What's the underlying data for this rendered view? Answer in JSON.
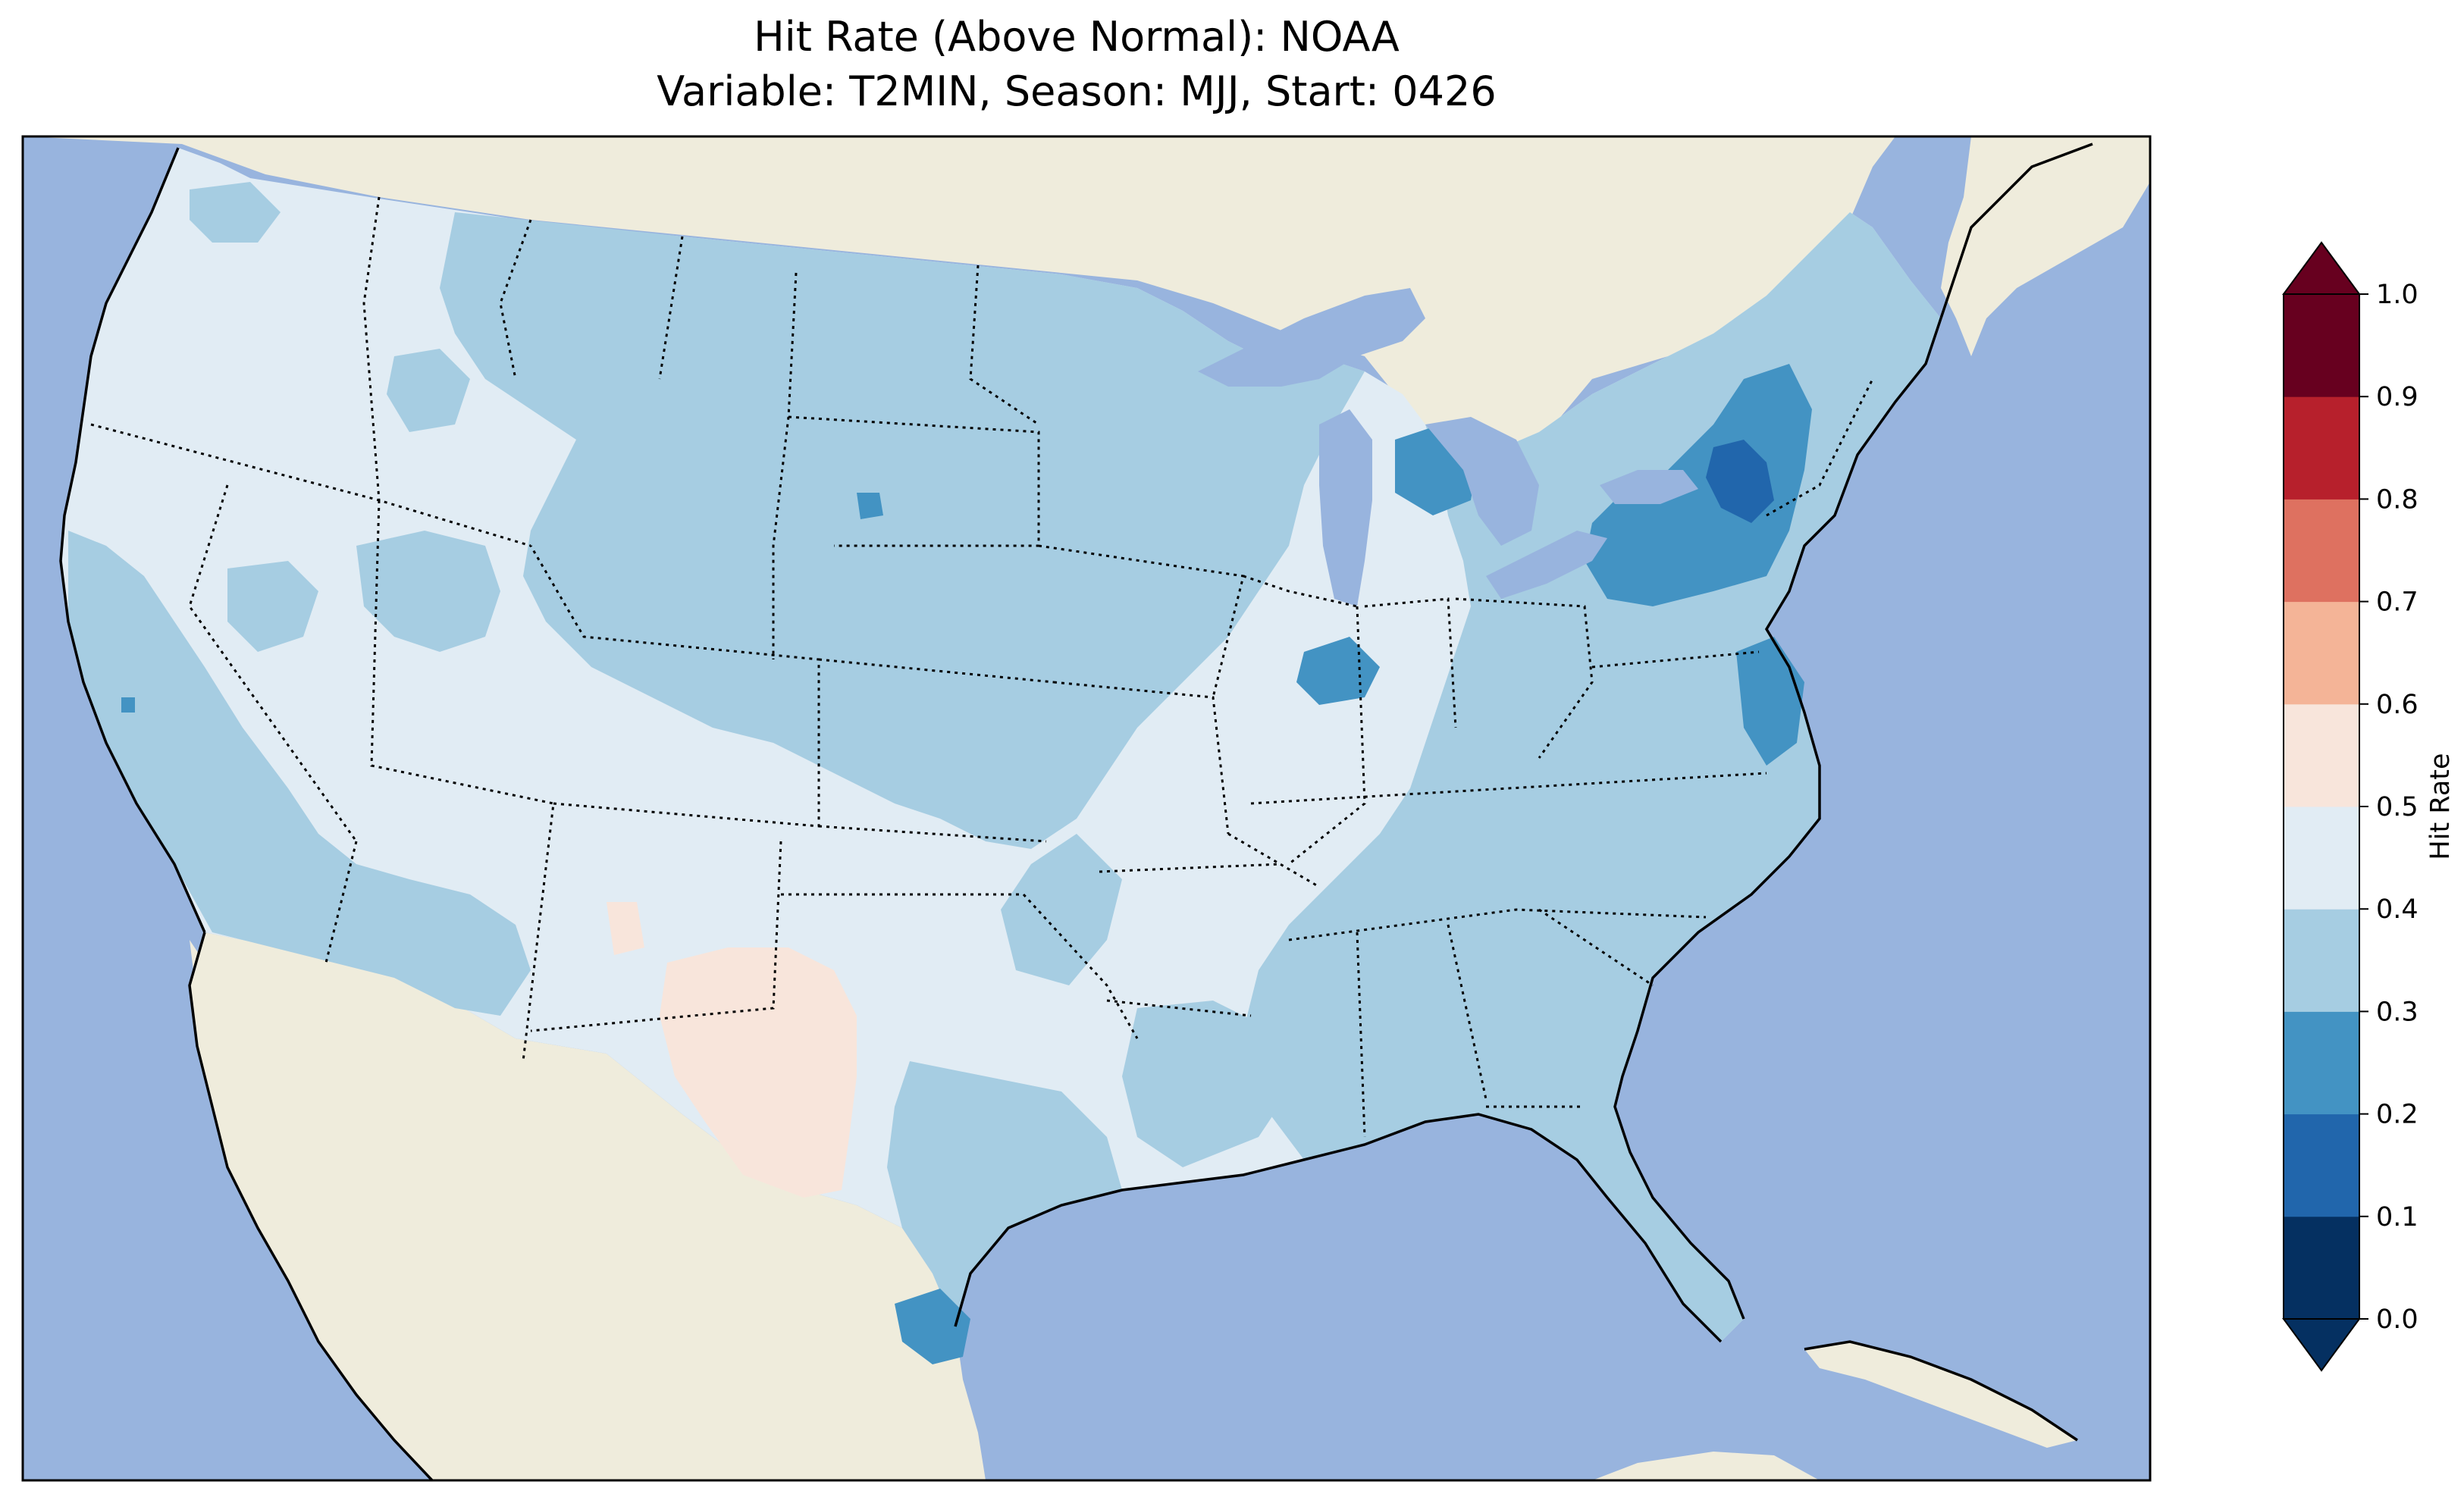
{
  "title": {
    "line1": "Hit Rate (Above Normal): NOAA",
    "line2": "Variable: T2MIN, Season: MJJ, Start: 0426"
  },
  "map": {
    "region": "Contiguous United States",
    "variable": "T2MIN",
    "season": "MJJ",
    "start": "0426",
    "colors": {
      "ocean": "#98b4de",
      "lakes": "#98b4de",
      "land_outside": "#efecdc",
      "coastline": "#000000",
      "state_borders": "#000000"
    },
    "dominant_value_bins": [
      {
        "bin": "0.4-0.5",
        "areas": "Pacific Northwest, Great Basin, Colorado Plateau, western Texas, Oklahoma, Arkansas"
      },
      {
        "bin": "0.3-0.4",
        "areas": "Northern Plains, Midwest, Southeast, California coast, New England"
      },
      {
        "bin": "0.2-0.3",
        "areas": "Michigan, Pennsylvania, upstate New York, Chesapeake Bay, south Texas coast"
      },
      {
        "bin": "0.1-0.2",
        "areas": "Central New York"
      },
      {
        "bin": "0.5-0.6",
        "areas": "West Texas / southeast New Mexico"
      }
    ]
  },
  "colorbar": {
    "label": "Hit Rate",
    "ticks": [
      "0.0",
      "0.1",
      "0.2",
      "0.3",
      "0.4",
      "0.5",
      "0.6",
      "0.7",
      "0.8",
      "0.9",
      "1.0"
    ],
    "extend": "both",
    "bins": [
      {
        "range": "0.0-0.1",
        "color": "#053061"
      },
      {
        "range": "0.1-0.2",
        "color": "#2166ac"
      },
      {
        "range": "0.2-0.3",
        "color": "#4393c3"
      },
      {
        "range": "0.3-0.4",
        "color": "#a6cde2"
      },
      {
        "range": "0.4-0.5",
        "color": "#e1ecf4"
      },
      {
        "range": "0.5-0.6",
        "color": "#f8e5db"
      },
      {
        "range": "0.6-0.7",
        "color": "#f4b497"
      },
      {
        "range": "0.7-0.8",
        "color": "#de7160"
      },
      {
        "range": "0.8-0.9",
        "color": "#b7202c"
      },
      {
        "range": "0.9-1.0",
        "color": "#67001f"
      }
    ]
  }
}
